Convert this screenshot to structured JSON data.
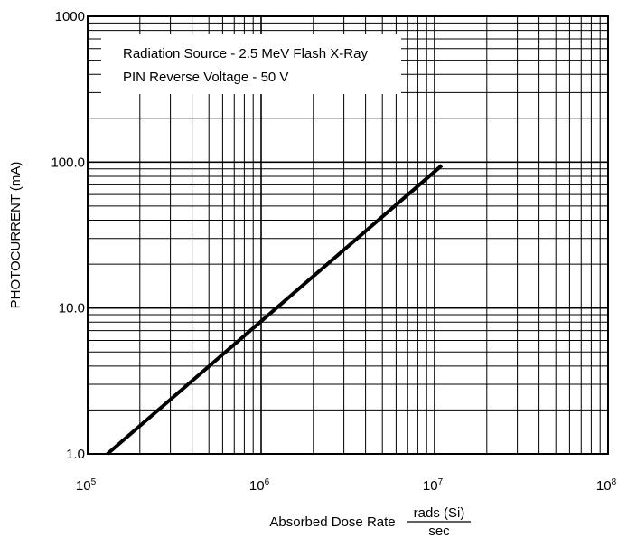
{
  "chart_data": {
    "type": "line",
    "x_scale": "log",
    "y_scale": "log",
    "xlim": [
      100000,
      100000000
    ],
    "ylim": [
      1,
      1000
    ],
    "grid": true,
    "x_ticks": [
      {
        "value": 100000,
        "base": "10",
        "exp": "5"
      },
      {
        "value": 1000000,
        "base": "10",
        "exp": "6"
      },
      {
        "value": 10000000,
        "base": "10",
        "exp": "7"
      },
      {
        "value": 100000000,
        "base": "10",
        "exp": "8"
      }
    ],
    "y_ticks": [
      {
        "value": 1,
        "label": "1.0"
      },
      {
        "value": 10,
        "label": "10.0"
      },
      {
        "value": 100,
        "label": "100.0"
      },
      {
        "value": 1000,
        "label": "1000"
      }
    ],
    "xlabel": "Absorbed Dose Rate",
    "xlabel_unit_numerator": "rads (Si)",
    "xlabel_unit_denominator": "sec",
    "ylabel": "PHOTOCURRENT (mA)",
    "annotations": [
      "Radiation Source - 2.5 MeV Flash X-Ray",
      "PIN Reverse Voltage - 50 V"
    ],
    "series": [
      {
        "x": [
          130000,
          11000000
        ],
        "y": [
          1,
          95
        ]
      }
    ]
  }
}
